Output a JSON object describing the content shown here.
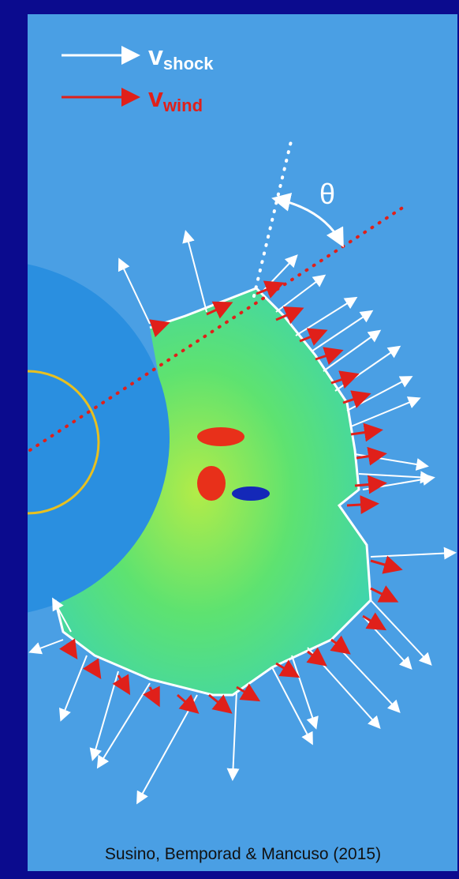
{
  "legend": [
    {
      "symbol": "v",
      "subscript": "shock"
    },
    {
      "symbol": "v",
      "subscript": "wind"
    }
  ],
  "angle_label": "θ",
  "credit": "Susino, Bemporad & Mancuso (2015)"
}
